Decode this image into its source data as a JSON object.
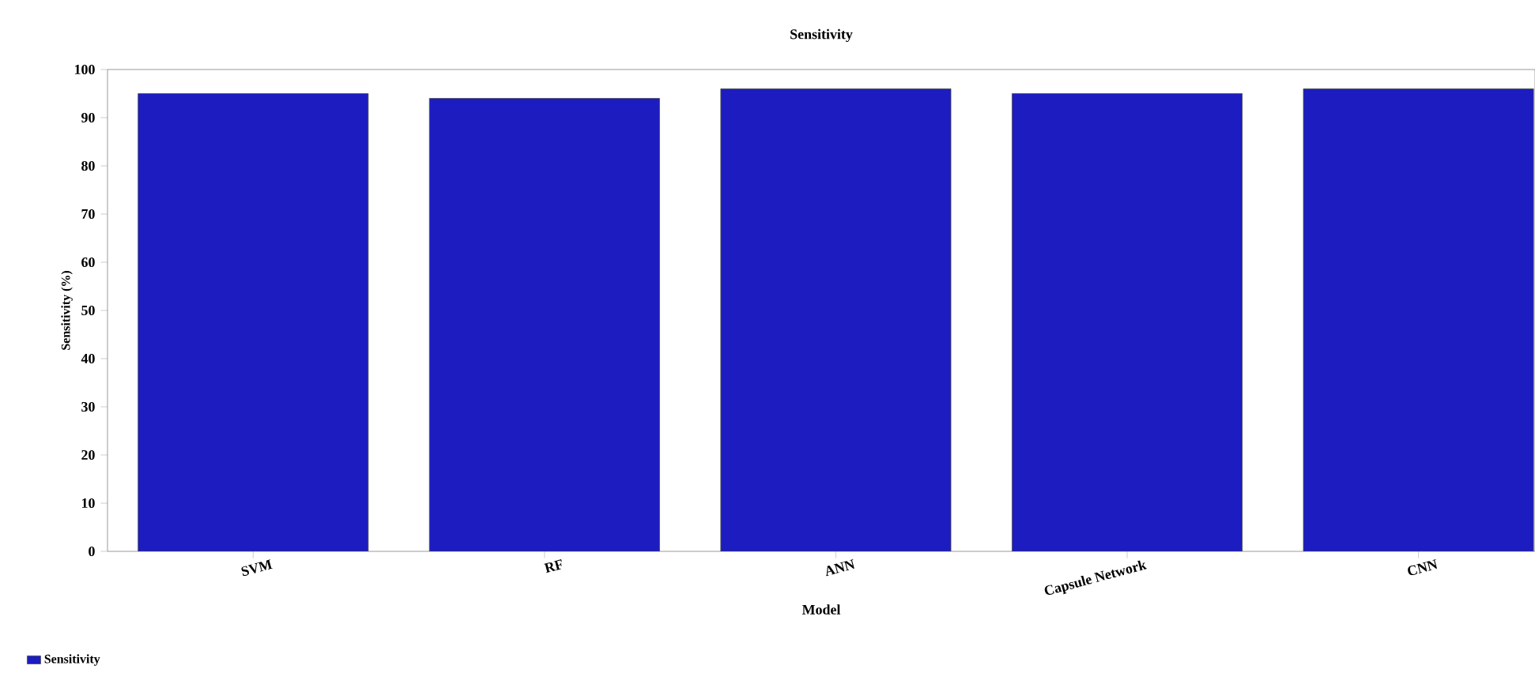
{
  "chart_data": {
    "type": "bar",
    "title": "Sensitivity",
    "xlabel": "Model",
    "ylabel": "Sensitivity (%)",
    "categories": [
      "SVM",
      "RF",
      "ANN",
      "Capsule Network",
      "CNN"
    ],
    "series": [
      {
        "name": "Sensitivity",
        "color": "#1c1cc0",
        "values": [
          95,
          94,
          96,
          95,
          96
        ]
      }
    ],
    "ylim": [
      0,
      100
    ],
    "yticks": [
      0,
      10,
      20,
      30,
      40,
      50,
      60,
      70,
      80,
      90,
      100
    ],
    "legend": "bottom left"
  }
}
